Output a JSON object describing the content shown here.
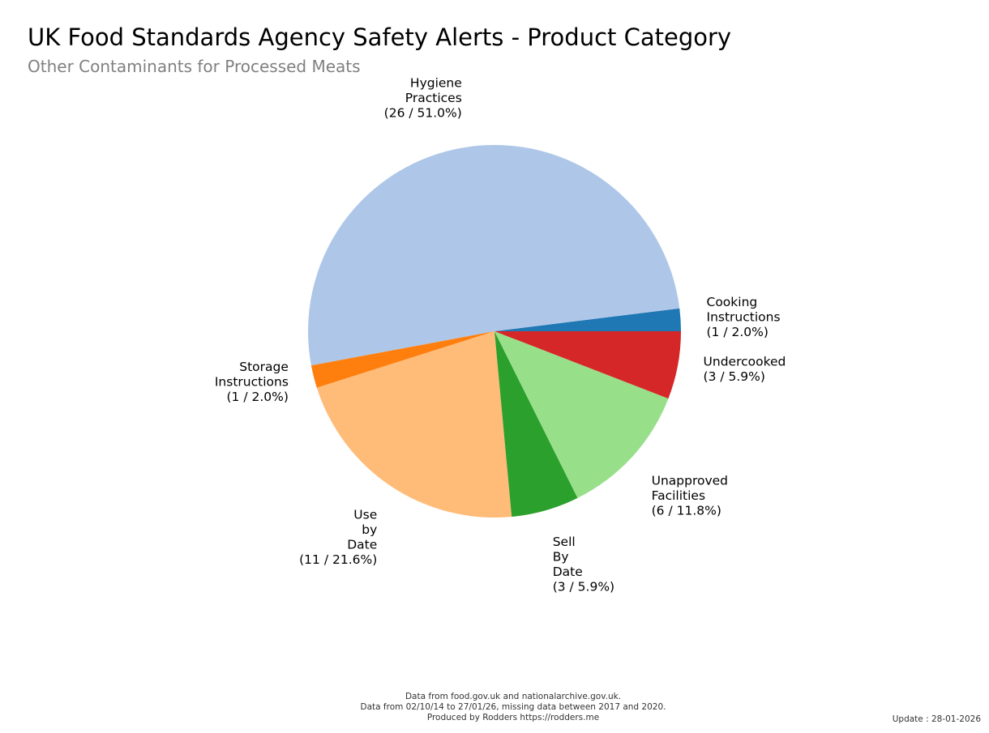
{
  "title": "UK Food Standards Agency Safety Alerts - Product Category",
  "subtitle": "Other Contaminants for Processed Meats",
  "chart_data": {
    "type": "pie",
    "title": "UK Food Standards Agency Safety Alerts - Product Category",
    "subtitle": "Other Contaminants for Processed Meats",
    "start_angle_deg": 0,
    "direction": "counterclockwise",
    "slices": [
      {
        "label_lines": [
          "Cooking",
          "Instructions",
          "(1 / 2.0%)"
        ],
        "name": "Cooking Instructions",
        "value": 1,
        "percent": 2.0,
        "color": "#1f77b4"
      },
      {
        "label_lines": [
          "Hygiene",
          "Practices",
          "(26 / 51.0%)"
        ],
        "name": "Hygiene Practices",
        "value": 26,
        "percent": 51.0,
        "color": "#aec7e8"
      },
      {
        "label_lines": [
          "Storage",
          "Instructions",
          "(1 / 2.0%)"
        ],
        "name": "Storage Instructions",
        "value": 1,
        "percent": 2.0,
        "color": "#ff7f0e"
      },
      {
        "label_lines": [
          "Use",
          "by",
          "Date",
          "(11 / 21.6%)"
        ],
        "name": "Use by Date",
        "value": 11,
        "percent": 21.6,
        "color": "#ffbb78"
      },
      {
        "label_lines": [
          "Sell",
          "By",
          "Date",
          "(3 / 5.9%)"
        ],
        "name": "Sell By Date",
        "value": 3,
        "percent": 5.9,
        "color": "#2ca02c"
      },
      {
        "label_lines": [
          "Unapproved",
          "Facilities",
          "(6 / 11.8%)"
        ],
        "name": "Unapproved Facilities",
        "value": 6,
        "percent": 11.8,
        "color": "#98df8a"
      },
      {
        "label_lines": [
          "Undercooked",
          "(3 / 5.9%)"
        ],
        "name": "Undercooked",
        "value": 3,
        "percent": 5.9,
        "color": "#d62728"
      }
    ]
  },
  "footer": {
    "line1": "Data from food.gov.uk and nationalarchive.gov.uk.",
    "line2": "Data from 02/10/14 to 27/01/26, missing data between 2017 and 2020.",
    "line3": "Produced by Rodders https://rodders.me"
  },
  "update": "Update : 28-01-2026"
}
